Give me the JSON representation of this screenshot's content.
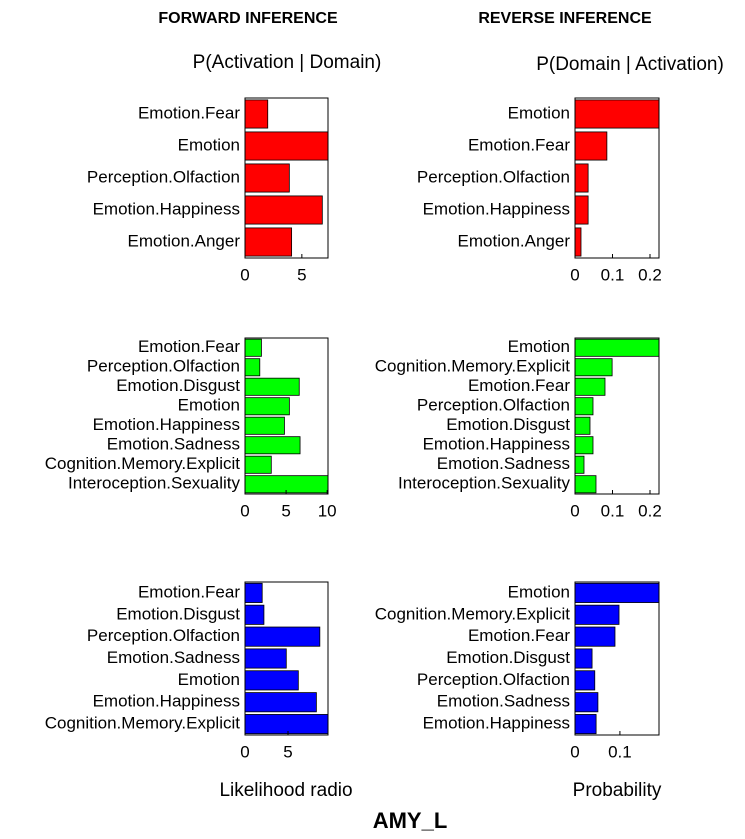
{
  "figure": {
    "title": "AMY_L",
    "columns": [
      {
        "heading": "FORWARD INFERENCE",
        "subtitle": "P(Activation | Domain)",
        "xlabel": "Likelihood radio"
      },
      {
        "heading": "REVERSE INFERENCE",
        "subtitle": "P(Domain | Activation)",
        "xlabel": "Probability"
      }
    ]
  },
  "chart_data": [
    {
      "type": "barh",
      "color": "#ff0000",
      "categories": [
        "Emotion.Fear",
        "Emotion",
        "Perception.Olfaction",
        "Emotion.Happiness",
        "Emotion.Anger"
      ],
      "values": [
        2.0,
        7.3,
        3.9,
        6.8,
        4.1
      ],
      "xlim": [
        0,
        7.3
      ],
      "xticks": [
        0,
        5
      ]
    },
    {
      "type": "barh",
      "color": "#ff0000",
      "categories": [
        "Emotion",
        "Emotion.Fear",
        "Perception.Olfaction",
        "Emotion.Happiness",
        "Emotion.Anger"
      ],
      "values": [
        0.224,
        0.085,
        0.035,
        0.035,
        0.016
      ],
      "xlim": [
        0,
        0.224
      ],
      "xticks": [
        0,
        0.1,
        0.2
      ]
    },
    {
      "type": "barh",
      "color": "#00ff00",
      "categories": [
        "Emotion.Fear",
        "Perception.Olfaction",
        "Emotion.Disgust",
        "Emotion",
        "Emotion.Happiness",
        "Emotion.Sadness",
        "Cognition.Memory.Explicit",
        "Interoception.Sexuality"
      ],
      "values": [
        2.0,
        1.8,
        6.6,
        5.4,
        4.8,
        6.7,
        3.2,
        10.1
      ],
      "xlim": [
        0,
        10.1
      ],
      "xticks": [
        0,
        5,
        10
      ]
    },
    {
      "type": "barh",
      "color": "#00ff00",
      "categories": [
        "Emotion",
        "Cognition.Memory.Explicit",
        "Emotion.Fear",
        "Perception.Olfaction",
        "Emotion.Disgust",
        "Emotion.Happiness",
        "Emotion.Sadness",
        "Interoception.Sexuality"
      ],
      "values": [
        0.224,
        0.099,
        0.08,
        0.048,
        0.04,
        0.048,
        0.024,
        0.056
      ],
      "xlim": [
        0,
        0.224
      ],
      "xticks": [
        0,
        0.1,
        0.2
      ]
    },
    {
      "type": "barh",
      "color": "#0000ff",
      "categories": [
        "Emotion.Fear",
        "Emotion.Disgust",
        "Perception.Olfaction",
        "Emotion.Sadness",
        "Emotion",
        "Emotion.Happiness",
        "Cognition.Memory.Explicit"
      ],
      "values": [
        2.0,
        2.2,
        8.7,
        4.8,
        6.2,
        8.3,
        9.65
      ],
      "xlim": [
        0,
        9.65
      ],
      "xticks": [
        0,
        5
      ]
    },
    {
      "type": "barh",
      "color": "#0000ff",
      "categories": [
        "Emotion",
        "Cognition.Memory.Explicit",
        "Emotion.Fear",
        "Emotion.Disgust",
        "Perception.Olfaction",
        "Emotion.Sadness",
        "Emotion.Happiness"
      ],
      "values": [
        0.187,
        0.098,
        0.089,
        0.038,
        0.044,
        0.051,
        0.047
      ],
      "xlim": [
        0,
        0.187
      ],
      "xticks": [
        0,
        0.1
      ]
    }
  ]
}
